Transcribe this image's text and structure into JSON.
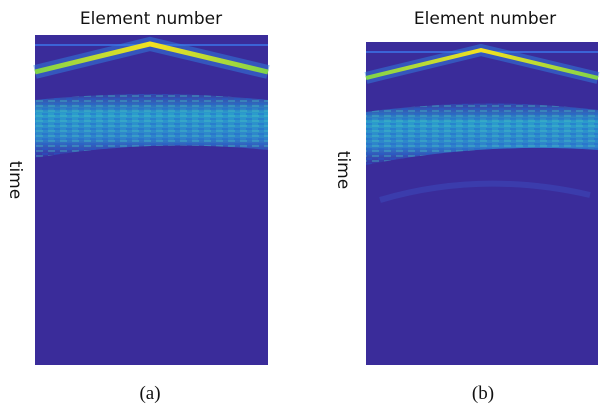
{
  "panels": [
    {
      "title": "Element number",
      "y_label": "time",
      "caption": "(a)"
    },
    {
      "title": "Element number",
      "y_label": "time",
      "caption": "(b)"
    }
  ]
}
